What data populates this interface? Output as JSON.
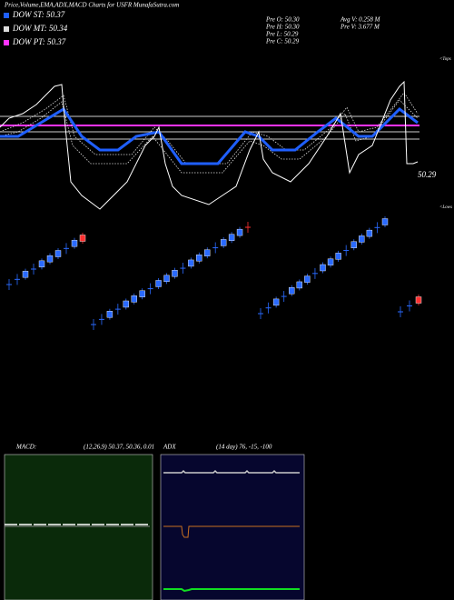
{
  "header": {
    "title": "Price,Volume,EMA,ADX,MACD Charts for USFR MunafaSutra.com"
  },
  "legend": {
    "items": [
      "DOW ST: 50.37",
      "DOW MT: 50.34",
      "DOW PT: 50.37"
    ]
  },
  "stats": {
    "pre_open": "Pre  O: 50.30",
    "pre_high": "Pre  H: 50.30",
    "pre_low": "Pre  L: 50.29",
    "pre_close": "Pre  C: 50.29",
    "avg_volume": "Avg V: 0.258 M",
    "pre_volume": "Pre   V: 3.677 M"
  },
  "price_panel": {
    "last_price": "50.29",
    "tops": "<Tops",
    "lows": "<Lows"
  },
  "macd_panel": {
    "label": "MACD:",
    "params": "(12,26,9) 50.37, 50.36, 0.01"
  },
  "adx_panel": {
    "label": "ADX",
    "params": "(14  day) 76, -15, -100"
  }
}
